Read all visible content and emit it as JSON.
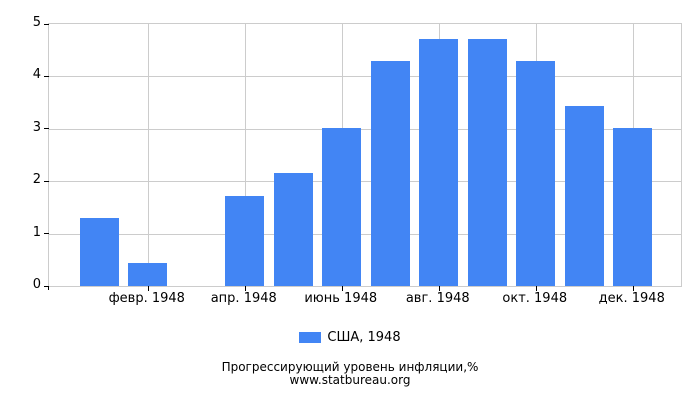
{
  "chart_data": {
    "type": "bar",
    "title": "Прогрессирующий уровень инфляции,%",
    "source": "www.statbureau.org",
    "legend_label": "США, 1948",
    "legend_position": "bottom",
    "bar_color": "#4285F4",
    "grid_color": "#CCCCCC",
    "tick_color": "#000000",
    "grid": true,
    "ylim": [
      0,
      5
    ],
    "yticks": [
      "0",
      "1",
      "2",
      "3",
      "4",
      "5"
    ],
    "values": [
      1.3,
      0.43,
      0,
      1.72,
      2.15,
      3.01,
      4.3,
      4.71,
      4.71,
      4.3,
      3.44,
      3.01
    ],
    "xticks": [
      {
        "month_index": 1,
        "label": "февр. 1948"
      },
      {
        "month_index": 3,
        "label": "апр. 1948"
      },
      {
        "month_index": 5,
        "label": "июнь 1948"
      },
      {
        "month_index": 7,
        "label": "авг. 1948"
      },
      {
        "month_index": 9,
        "label": "окт. 1948"
      },
      {
        "month_index": 11,
        "label": "дек. 1948"
      }
    ]
  }
}
